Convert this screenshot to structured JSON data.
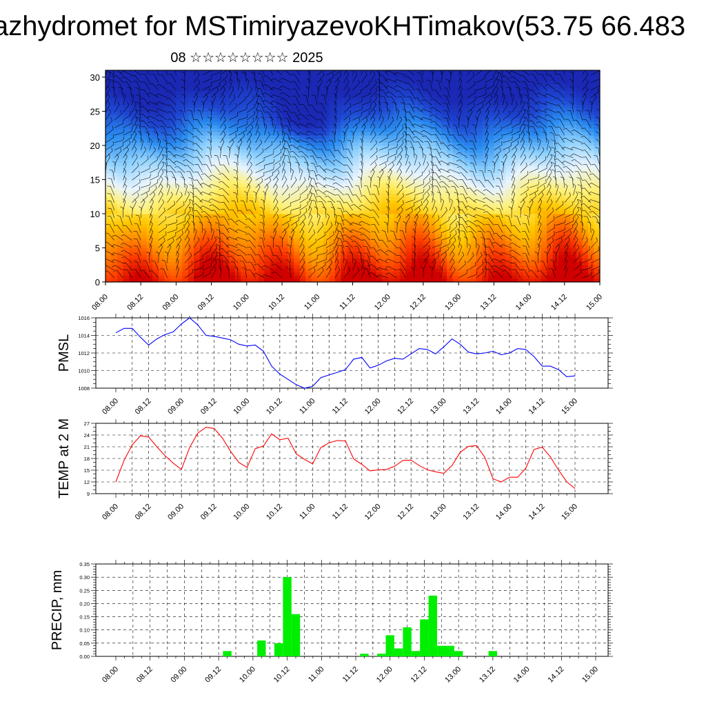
{
  "header": {
    "title": "azhydromet for MSTimiryazevoKHTimakov(53.75 66.483",
    "subtitle": "08 ☆☆☆☆☆☆☆☆ 2025"
  },
  "chart_data": [
    {
      "type": "heatmap",
      "title": "",
      "xlabel": "",
      "ylabel": "",
      "ylim": [
        0,
        31
      ],
      "yticks": [
        0,
        5,
        10,
        15,
        20,
        25,
        30
      ],
      "xticks": [
        "08.00",
        "08.12",
        "09.00",
        "09.12",
        "10.00",
        "10.12",
        "11.00",
        "11.12",
        "12.00",
        "12.12",
        "13.00",
        "13.12",
        "14.00",
        "14.12",
        "15.00"
      ],
      "color_scale": [
        "#d00000",
        "#ff4000",
        "#ff8a00",
        "#ffc800",
        "#fff070",
        "#e8f4ff",
        "#8cd0ff",
        "#2a8cf0",
        "#1e46d2",
        "#1a28b4"
      ],
      "note": "vertical temperature cross-section with wind barbs"
    },
    {
      "type": "line",
      "ylabel": "PMSL",
      "ylim": [
        1008,
        1016
      ],
      "yticks": [
        1008,
        1010,
        1012,
        1014,
        1016
      ],
      "xticks": [
        "08.00",
        "08.12",
        "09.00",
        "09.12",
        "10.00",
        "10.12",
        "11.00",
        "11.12",
        "12.00",
        "12.12",
        "13.00",
        "13.12",
        "14.00",
        "14.12",
        "15.00"
      ],
      "color": "#0000ff",
      "series": [
        {
          "x_hours": [
            0,
            3,
            6,
            9,
            12,
            15,
            18,
            21,
            24,
            27,
            30,
            33,
            36,
            39,
            42,
            45,
            48,
            51,
            54,
            57,
            60,
            63,
            66,
            69,
            72,
            75,
            78,
            81,
            84,
            87,
            90,
            93,
            96,
            99,
            102,
            105,
            108,
            111,
            114,
            117,
            120,
            123,
            126,
            129,
            132,
            135,
            138,
            141,
            144,
            147,
            150,
            153,
            156,
            159,
            162,
            165,
            168
          ],
          "values": [
            1014.3,
            1014.8,
            1014.8,
            1013.8,
            1012.9,
            1013.6,
            1014.1,
            1014.4,
            1015.3,
            1016.0,
            1015.2,
            1014.0,
            1013.9,
            1013.7,
            1013.5,
            1013.0,
            1012.8,
            1012.9,
            1012.2,
            1010.5,
            1009.6,
            1009.0,
            1008.4,
            1008.0,
            1008.2,
            1009.2,
            1009.5,
            1009.8,
            1010.1,
            1011.3,
            1011.5,
            1010.3,
            1010.6,
            1011.1,
            1011.4,
            1011.3,
            1011.9,
            1012.5,
            1012.4,
            1011.9,
            1012.7,
            1013.6,
            1013.0,
            1012.1,
            1011.9,
            1012.0,
            1012.2,
            1011.8,
            1012.0,
            1012.5,
            1012.4,
            1011.6,
            1010.5,
            1010.5,
            1010.1,
            1009.3,
            1009.4
          ]
        }
      ]
    },
    {
      "type": "line",
      "ylabel": "TEMP at 2 M",
      "ylim": [
        9,
        27
      ],
      "yticks": [
        9,
        12,
        15,
        18,
        21,
        24,
        27
      ],
      "xticks": [
        "08.00",
        "08.12",
        "09.00",
        "09.12",
        "10.00",
        "10.12",
        "11.00",
        "11.12",
        "12.00",
        "12.12",
        "13.00",
        "13.12",
        "14.00",
        "14.12",
        "15.00"
      ],
      "color": "#ff0000",
      "series": [
        {
          "x_hours": [
            0,
            3,
            6,
            9,
            12,
            15,
            18,
            21,
            24,
            27,
            30,
            33,
            36,
            39,
            42,
            45,
            48,
            51,
            54,
            57,
            60,
            63,
            66,
            69,
            72,
            75,
            78,
            81,
            84,
            87,
            90,
            93,
            96,
            99,
            102,
            105,
            108,
            111,
            114,
            117,
            120,
            123,
            126,
            129,
            132,
            135,
            138,
            141,
            144,
            147,
            150,
            153,
            156,
            159,
            162,
            165,
            168
          ],
          "values": [
            12.0,
            17.5,
            21.5,
            23.8,
            23.5,
            21.0,
            18.7,
            16.8,
            15.2,
            20.8,
            24.5,
            26.0,
            25.7,
            23.2,
            19.8,
            17.0,
            15.7,
            20.5,
            21.2,
            24.3,
            22.8,
            23.2,
            19.2,
            17.8,
            16.6,
            20.8,
            22.0,
            22.6,
            22.5,
            17.9,
            16.5,
            14.8,
            15.1,
            15.2,
            16.0,
            17.5,
            17.6,
            16.2,
            15.1,
            14.6,
            14.2,
            16.2,
            19.6,
            21.1,
            21.3,
            18.3,
            12.8,
            12.0,
            13.2,
            13.2,
            15.5,
            20.3,
            20.9,
            18.4,
            15.0,
            12.0,
            10.3
          ]
        }
      ]
    },
    {
      "type": "bar",
      "ylabel": "PRECIP, mm",
      "ylim": [
        0,
        0.35
      ],
      "yticks": [
        "0.00",
        "0.05",
        "0.10",
        "0.15",
        "0.20",
        "0.25",
        "0.30",
        "0.35"
      ],
      "xticks": [
        "08.00",
        "08.12",
        "09.00",
        "09.12",
        "10.00",
        "10.12",
        "11.00",
        "11.12",
        "12.00",
        "12.12",
        "13.00",
        "13.12",
        "14.00",
        "14.12",
        "15.00"
      ],
      "color": "#00ee00",
      "bars": [
        {
          "x_hours": 39,
          "value": 0.02
        },
        {
          "x_hours": 51,
          "value": 0.06
        },
        {
          "x_hours": 57,
          "value": 0.05
        },
        {
          "x_hours": 60,
          "value": 0.3
        },
        {
          "x_hours": 63,
          "value": 0.16
        },
        {
          "x_hours": 87,
          "value": 0.01
        },
        {
          "x_hours": 93,
          "value": 0.01
        },
        {
          "x_hours": 96,
          "value": 0.08
        },
        {
          "x_hours": 99,
          "value": 0.03
        },
        {
          "x_hours": 102,
          "value": 0.11
        },
        {
          "x_hours": 105,
          "value": 0.02
        },
        {
          "x_hours": 108,
          "value": 0.14
        },
        {
          "x_hours": 111,
          "value": 0.23
        },
        {
          "x_hours": 114,
          "value": 0.04
        },
        {
          "x_hours": 117,
          "value": 0.04
        },
        {
          "x_hours": 120,
          "value": 0.02
        },
        {
          "x_hours": 132,
          "value": 0.02
        }
      ]
    }
  ]
}
